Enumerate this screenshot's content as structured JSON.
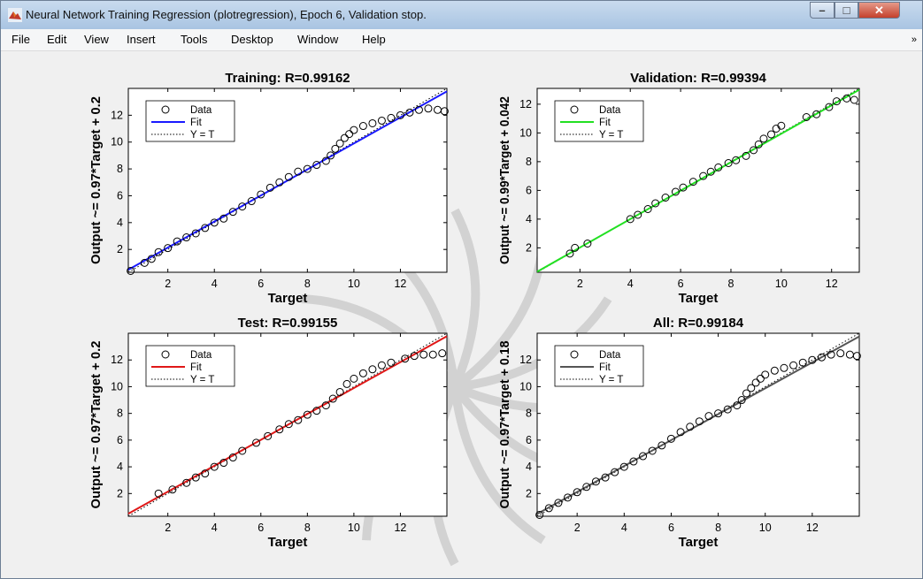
{
  "window": {
    "title": "Neural Network Training Regression (plotregression), Epoch 6, Validation stop.",
    "minimize_label": "–",
    "maximize_label": "□",
    "close_label": "✕",
    "icon": "matlab-icon"
  },
  "menu": {
    "items": [
      "File",
      "Edit",
      "View",
      "Insert",
      "Tools",
      "Desktop",
      "Window",
      "Help"
    ],
    "overflow_label": "»"
  },
  "colors": {
    "training_fit": "#1a1aff",
    "validation_fit": "#22e022",
    "test_fit": "#e01818",
    "all_fit": "#555555",
    "figure_bg": "#f0f0f0"
  },
  "chart_data": [
    {
      "type": "scatter",
      "title": "Training: R=0.99162",
      "xlabel": "Target",
      "ylabel": "Output ~= 0.97*Target + 0.2",
      "xlim": [
        0.3,
        14
      ],
      "ylim": [
        0.3,
        14
      ],
      "xticks": [
        2,
        4,
        6,
        8,
        10,
        12
      ],
      "yticks": [
        2,
        4,
        6,
        8,
        10,
        12
      ],
      "fit": {
        "slope": 0.97,
        "intercept": 0.2
      },
      "legend": [
        "Data",
        "Fit",
        "Y = T"
      ],
      "legend_position": "top-left",
      "series": [
        {
          "name": "Data",
          "x": [
            0.4,
            1.0,
            1.3,
            1.6,
            2.0,
            2.4,
            2.8,
            3.2,
            3.6,
            4.0,
            4.4,
            4.8,
            5.2,
            5.6,
            6.0,
            6.4,
            6.8,
            7.2,
            7.6,
            8.0,
            8.4,
            8.8,
            9.0,
            9.2,
            9.4,
            9.6,
            9.8,
            10.0,
            10.4,
            10.8,
            11.2,
            11.6,
            12.0,
            12.4,
            12.8,
            13.2,
            13.6,
            13.9
          ],
          "y": [
            0.4,
            1.0,
            1.3,
            1.8,
            2.1,
            2.6,
            2.9,
            3.2,
            3.6,
            4.0,
            4.3,
            4.8,
            5.2,
            5.6,
            6.1,
            6.6,
            7.0,
            7.4,
            7.8,
            8.0,
            8.3,
            8.6,
            9.0,
            9.5,
            9.9,
            10.3,
            10.6,
            10.9,
            11.2,
            11.4,
            11.6,
            11.8,
            12.0,
            12.2,
            12.4,
            12.5,
            12.4,
            12.3
          ]
        }
      ]
    },
    {
      "type": "scatter",
      "title": "Validation: R=0.99394",
      "xlabel": "Target",
      "ylabel": "Output ~= 0.99*Target + 0.042",
      "xlim": [
        0.3,
        13.1
      ],
      "ylim": [
        0.3,
        13.1
      ],
      "xticks": [
        2,
        4,
        6,
        8,
        10,
        12
      ],
      "yticks": [
        2,
        4,
        6,
        8,
        10,
        12
      ],
      "fit": {
        "slope": 0.99,
        "intercept": 0.042
      },
      "legend": [
        "Data",
        "Fit",
        "Y = T"
      ],
      "legend_position": "top-left",
      "series": [
        {
          "name": "Data",
          "x": [
            1.6,
            1.8,
            2.3,
            4.0,
            4.3,
            4.7,
            5.0,
            5.4,
            5.8,
            6.1,
            6.5,
            6.9,
            7.2,
            7.5,
            7.9,
            8.2,
            8.6,
            8.9,
            9.1,
            9.3,
            9.6,
            9.8,
            10.0,
            11.0,
            11.4,
            11.9,
            12.2,
            12.6,
            12.9
          ],
          "y": [
            1.6,
            2.0,
            2.3,
            4.0,
            4.3,
            4.7,
            5.1,
            5.5,
            5.9,
            6.2,
            6.6,
            7.0,
            7.3,
            7.6,
            7.9,
            8.1,
            8.4,
            8.8,
            9.2,
            9.6,
            9.9,
            10.3,
            10.5,
            11.1,
            11.3,
            11.8,
            12.2,
            12.4,
            12.3
          ]
        }
      ]
    },
    {
      "type": "scatter",
      "title": "Test: R=0.99155",
      "xlabel": "Target",
      "ylabel": "Output ~= 0.97*Target + 0.2",
      "xlim": [
        0.3,
        14
      ],
      "ylim": [
        0.3,
        14
      ],
      "xticks": [
        2,
        4,
        6,
        8,
        10,
        12
      ],
      "yticks": [
        2,
        4,
        6,
        8,
        10,
        12
      ],
      "fit": {
        "slope": 0.97,
        "intercept": 0.2
      },
      "legend": [
        "Data",
        "Fit",
        "Y = T"
      ],
      "legend_position": "top-left",
      "series": [
        {
          "name": "Data",
          "x": [
            1.6,
            2.2,
            2.8,
            3.2,
            3.6,
            4.0,
            4.4,
            4.8,
            5.2,
            5.8,
            6.3,
            6.8,
            7.2,
            7.6,
            8.0,
            8.4,
            8.8,
            9.1,
            9.4,
            9.7,
            10.0,
            10.4,
            10.8,
            11.2,
            11.6,
            12.2,
            12.6,
            13.0,
            13.4,
            13.8
          ],
          "y": [
            2.0,
            2.3,
            2.8,
            3.2,
            3.5,
            4.0,
            4.3,
            4.7,
            5.2,
            5.8,
            6.3,
            6.8,
            7.2,
            7.5,
            7.9,
            8.2,
            8.6,
            9.1,
            9.6,
            10.2,
            10.6,
            11.0,
            11.3,
            11.6,
            11.8,
            12.1,
            12.3,
            12.4,
            12.4,
            12.5
          ]
        }
      ]
    },
    {
      "type": "scatter",
      "title": "All: R=0.99184",
      "xlabel": "Target",
      "ylabel": "Output ~= 0.97*Target + 0.18",
      "xlim": [
        0.3,
        14
      ],
      "ylim": [
        0.3,
        14
      ],
      "xticks": [
        2,
        4,
        6,
        8,
        10,
        12
      ],
      "yticks": [
        2,
        4,
        6,
        8,
        10,
        12
      ],
      "fit": {
        "slope": 0.97,
        "intercept": 0.18
      },
      "legend": [
        "Data",
        "Fit",
        "Y = T"
      ],
      "legend_position": "top-left",
      "series": [
        {
          "name": "Data",
          "x": [
            0.4,
            0.8,
            1.2,
            1.6,
            2.0,
            2.4,
            2.8,
            3.2,
            3.6,
            4.0,
            4.4,
            4.8,
            5.2,
            5.6,
            6.0,
            6.4,
            6.8,
            7.2,
            7.6,
            8.0,
            8.4,
            8.8,
            9.0,
            9.2,
            9.4,
            9.6,
            9.8,
            10.0,
            10.4,
            10.8,
            11.2,
            11.6,
            12.0,
            12.4,
            12.8,
            13.2,
            13.6,
            13.9
          ],
          "y": [
            0.4,
            0.9,
            1.3,
            1.7,
            2.1,
            2.5,
            2.9,
            3.2,
            3.6,
            4.0,
            4.4,
            4.8,
            5.2,
            5.6,
            6.1,
            6.6,
            7.0,
            7.4,
            7.8,
            8.0,
            8.3,
            8.6,
            9.0,
            9.5,
            9.9,
            10.3,
            10.6,
            10.9,
            11.2,
            11.4,
            11.6,
            11.8,
            12.0,
            12.2,
            12.4,
            12.5,
            12.4,
            12.3
          ]
        }
      ]
    }
  ]
}
